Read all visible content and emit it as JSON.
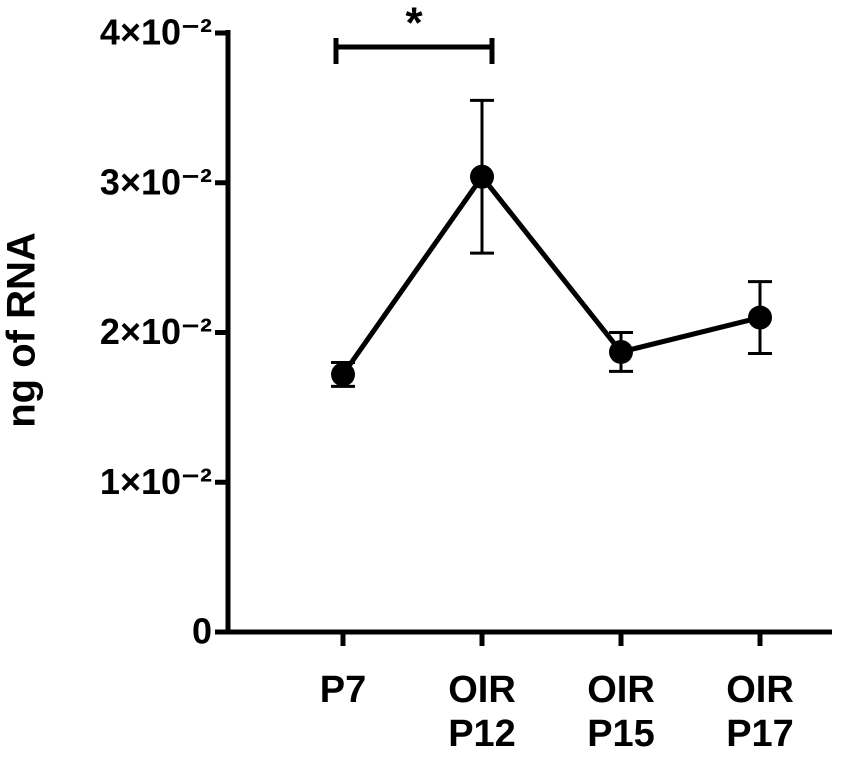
{
  "chart_data": {
    "type": "line",
    "y_label": "ng of RNA",
    "categories": [
      "P7",
      "OIR P12",
      "OIR P15",
      "OIR P17"
    ],
    "values": [
      0.0172,
      0.0304,
      0.0187,
      0.021
    ],
    "errors": [
      0.0008,
      0.0051,
      0.0013,
      0.0024
    ],
    "color": "#000000",
    "ylim": [
      0,
      0.04
    ],
    "yticks": [
      0,
      {
        "value": 0.01,
        "label": "1×10⁻²"
      },
      {
        "value": 0.02,
        "label": "2×10⁻²"
      },
      {
        "value": 0.03,
        "label": "3×10⁻²"
      },
      {
        "value": 0.04,
        "label": "4×10⁻²"
      }
    ],
    "significance": "*"
  }
}
